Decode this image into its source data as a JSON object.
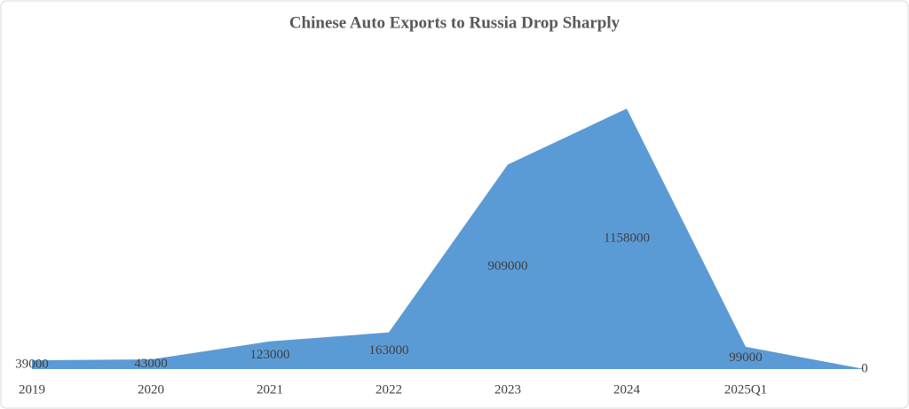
{
  "chart_data": {
    "type": "area",
    "title": "Chinese Auto Exports to Russia Drop Sharply",
    "categories": [
      "2019",
      "2020",
      "2021",
      "2022",
      "2023",
      "2024",
      "2025Q1",
      null
    ],
    "values": [
      39000,
      43000,
      123000,
      163000,
      909000,
      1158000,
      99000,
      0
    ],
    "color": "#5b9bd5",
    "ylim": [
      0,
      1400000
    ]
  }
}
